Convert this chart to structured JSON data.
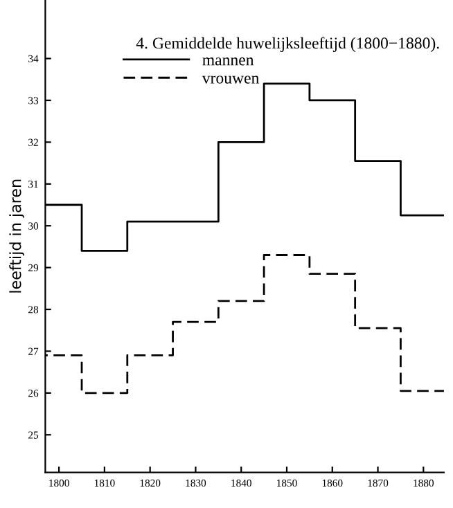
{
  "chart_data": {
    "type": "step",
    "title": "4. Gemiddelde huwelijksleeftijd (1800−1880).",
    "ylabel": "leeftijd in jaren",
    "x": [
      1800,
      1810,
      1820,
      1830,
      1840,
      1850,
      1860,
      1870,
      1880
    ],
    "series": [
      {
        "name": "mannen",
        "color": "#000000",
        "line_style": "solid",
        "values": [
          30.5,
          29.4,
          30.1,
          30.1,
          32.0,
          33.4,
          33.0,
          31.55,
          30.25
        ]
      },
      {
        "name": "vrouwen",
        "color": "#000000",
        "line_style": "dashed",
        "values": [
          26.9,
          26.0,
          26.9,
          27.7,
          28.2,
          29.3,
          28.85,
          27.55,
          26.05
        ]
      }
    ],
    "xlim": [
      1797,
      1884.5
    ],
    "xticks": [
      1800,
      1810,
      1820,
      1830,
      1840,
      1850,
      1860,
      1870,
      1880
    ],
    "ylim": [
      24.1,
      35.4
    ],
    "yticks": [
      25,
      26,
      27,
      28,
      29,
      30,
      31,
      32,
      33,
      34
    ],
    "grid": false,
    "legend": "top left"
  }
}
